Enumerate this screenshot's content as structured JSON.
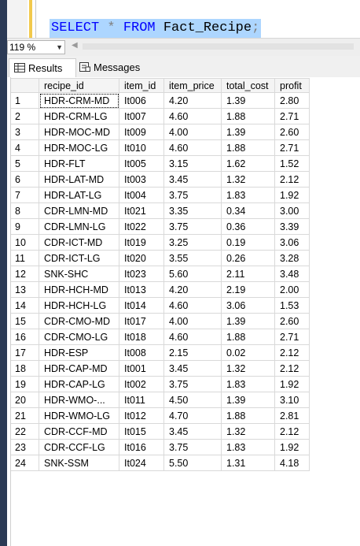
{
  "editor": {
    "keyword_select": "SELECT",
    "operator_star": "*",
    "keyword_from": "FROM",
    "table_name": "Fact_Recipe",
    "terminator": ";"
  },
  "zoom": {
    "value": "119 %"
  },
  "tabs": {
    "results": "Results",
    "messages": "Messages"
  },
  "grid": {
    "columns": [
      "recipe_id",
      "item_id",
      "item_price",
      "total_cost",
      "profit"
    ],
    "rows": [
      [
        "1",
        "HDR-CRM-MD",
        "It006",
        "4.20",
        "1.39",
        "2.80"
      ],
      [
        "2",
        "HDR-CRM-LG",
        "It007",
        "4.60",
        "1.88",
        "2.71"
      ],
      [
        "3",
        "HDR-MOC-MD",
        "It009",
        "4.00",
        "1.39",
        "2.60"
      ],
      [
        "4",
        "HDR-MOC-LG",
        "It010",
        "4.60",
        "1.88",
        "2.71"
      ],
      [
        "5",
        "HDR-FLT",
        "It005",
        "3.15",
        "1.62",
        "1.52"
      ],
      [
        "6",
        "HDR-LAT-MD",
        "It003",
        "3.45",
        "1.32",
        "2.12"
      ],
      [
        "7",
        "HDR-LAT-LG",
        "It004",
        "3.75",
        "1.83",
        "1.92"
      ],
      [
        "8",
        "CDR-LMN-MD",
        "It021",
        "3.35",
        "0.34",
        "3.00"
      ],
      [
        "9",
        "CDR-LMN-LG",
        "It022",
        "3.75",
        "0.36",
        "3.39"
      ],
      [
        "10",
        "CDR-ICT-MD",
        "It019",
        "3.25",
        "0.19",
        "3.06"
      ],
      [
        "11",
        "CDR-ICT-LG",
        "It020",
        "3.55",
        "0.26",
        "3.28"
      ],
      [
        "12",
        "SNK-SHC",
        "It023",
        "5.60",
        "2.11",
        "3.48"
      ],
      [
        "13",
        "HDR-HCH-MD",
        "It013",
        "4.20",
        "2.19",
        "2.00"
      ],
      [
        "14",
        "HDR-HCH-LG",
        "It014",
        "4.60",
        "3.06",
        "1.53"
      ],
      [
        "15",
        "CDR-CMO-MD",
        "It017",
        "4.00",
        "1.39",
        "2.60"
      ],
      [
        "16",
        "CDR-CMO-LG",
        "It018",
        "4.60",
        "1.88",
        "2.71"
      ],
      [
        "17",
        "HDR-ESP",
        "It008",
        "2.15",
        "0.02",
        "2.12"
      ],
      [
        "18",
        "HDR-CAP-MD",
        "It001",
        "3.45",
        "1.32",
        "2.12"
      ],
      [
        "19",
        "HDR-CAP-LG",
        "It002",
        "3.75",
        "1.83",
        "1.92"
      ],
      [
        "20",
        "HDR-WMO-...",
        "It011",
        "4.50",
        "1.39",
        "3.10"
      ],
      [
        "21",
        "HDR-WMO-LG",
        "It012",
        "4.70",
        "1.88",
        "2.81"
      ],
      [
        "22",
        "CDR-CCF-MD",
        "It015",
        "3.45",
        "1.32",
        "2.12"
      ],
      [
        "23",
        "CDR-CCF-LG",
        "It016",
        "3.75",
        "1.83",
        "1.92"
      ],
      [
        "24",
        "SNK-SSM",
        "It024",
        "5.50",
        "1.31",
        "4.18"
      ]
    ]
  }
}
